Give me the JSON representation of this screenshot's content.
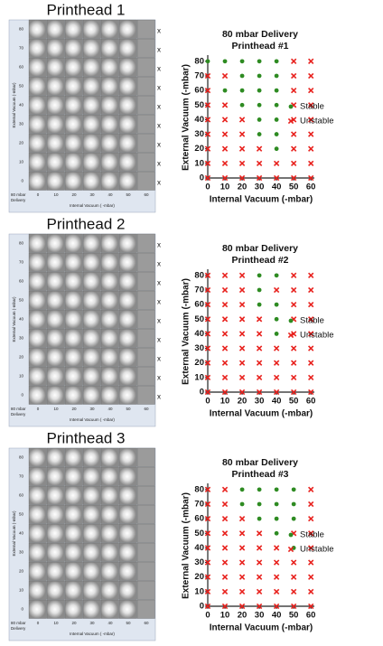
{
  "panels": [
    {
      "title": "Printhead 1",
      "y_labels": [
        80,
        70,
        60,
        50,
        40,
        30,
        20,
        10,
        0
      ],
      "x_labels": [
        0,
        10,
        20,
        30,
        40,
        50,
        60
      ],
      "corner_label": [
        "80 mbar",
        "Delivery"
      ],
      "x_label": "Internal Vacuum ( -mbar)",
      "y_label": "External Vacuum (-mbar)",
      "side_marks": [
        "x",
        "x",
        "x",
        "x",
        "x",
        "x",
        "x",
        "x",
        "x"
      ]
    },
    {
      "title": "Printhead 2",
      "y_labels": [
        80,
        70,
        60,
        50,
        40,
        30,
        20,
        10,
        0
      ],
      "x_labels": [
        0,
        10,
        20,
        30,
        40,
        50,
        60
      ],
      "corner_label": [
        "80 mbar",
        "Delivery"
      ],
      "x_label": "Internal Vacuum ( -mbar)",
      "y_label": "External Vacuum (-mbar)",
      "side_marks": [
        "x",
        "x",
        "x",
        "x",
        "x",
        "x",
        "x",
        "x",
        "x"
      ]
    },
    {
      "title": "Printhead 3",
      "y_labels": [
        80,
        70,
        60,
        50,
        40,
        30,
        20,
        10,
        0
      ],
      "x_labels": [
        0,
        10,
        20,
        30,
        40,
        50,
        60
      ],
      "corner_label": [
        "80 mbar",
        "Delivery"
      ],
      "x_label": "Internal Vacuum ( -mbar)",
      "y_label": "External Vacuum (-mbar)"
    }
  ],
  "chart_data": [
    {
      "type": "scatter",
      "title": "80 mbar Delivery",
      "subtitle": "Printhead #1",
      "x_label": "Internal Vacuum (-mbar)",
      "y_label": "External Vacuum (-mbar)",
      "xlim": [
        0,
        62
      ],
      "ylim": [
        0,
        83
      ],
      "xticks": [
        0,
        10,
        20,
        30,
        40,
        50,
        60
      ],
      "yticks": [
        0,
        10,
        20,
        30,
        40,
        50,
        60,
        70,
        80
      ],
      "legend": "right",
      "series": [
        {
          "name": "Stable",
          "color": "#2e8b22",
          "marker": "circle",
          "x": [
            0,
            10,
            20,
            30,
            40,
            20,
            30,
            40,
            10,
            20,
            30,
            40,
            20,
            30,
            40,
            30,
            40,
            30,
            40,
            40
          ],
          "values": [
            80,
            80,
            80,
            80,
            80,
            70,
            70,
            70,
            60,
            60,
            60,
            60,
            50,
            50,
            50,
            40,
            40,
            30,
            30,
            20
          ]
        },
        {
          "name": "Unstable",
          "color": "#e8211d",
          "marker": "cross",
          "x": [
            50,
            60,
            0,
            10,
            50,
            60,
            0,
            50,
            60,
            0,
            10,
            50,
            60,
            0,
            10,
            20,
            50,
            60,
            0,
            10,
            20,
            50,
            60,
            0,
            10,
            20,
            30,
            50,
            60,
            0,
            10,
            20,
            30,
            40,
            50,
            60,
            0,
            10,
            20,
            30,
            40,
            50,
            60
          ],
          "values": [
            80,
            80,
            70,
            70,
            70,
            70,
            60,
            60,
            60,
            50,
            50,
            50,
            50,
            40,
            40,
            40,
            40,
            40,
            30,
            30,
            30,
            30,
            30,
            20,
            20,
            20,
            20,
            20,
            20,
            10,
            10,
            10,
            10,
            10,
            10,
            10,
            0,
            0,
            0,
            0,
            0,
            0,
            0
          ]
        }
      ]
    },
    {
      "type": "scatter",
      "title": "80 mbar Delivery",
      "subtitle": "Printhead #2",
      "x_label": "Internal Vacuum (-mbar)",
      "y_label": "External Vacuum (-mbar)",
      "xlim": [
        0,
        62
      ],
      "ylim": [
        0,
        83
      ],
      "xticks": [
        0,
        10,
        20,
        30,
        40,
        50,
        60
      ],
      "yticks": [
        0,
        10,
        20,
        30,
        40,
        50,
        60,
        70,
        80
      ],
      "legend": "right",
      "series": [
        {
          "name": "Stable",
          "color": "#2e8b22",
          "marker": "circle",
          "x": [
            30,
            40,
            30,
            30,
            40,
            40,
            40
          ],
          "values": [
            80,
            80,
            70,
            60,
            60,
            50,
            40
          ]
        },
        {
          "name": "Unstable",
          "color": "#e8211d",
          "marker": "cross",
          "x": [
            0,
            10,
            20,
            50,
            60,
            0,
            10,
            20,
            40,
            50,
            60,
            0,
            10,
            20,
            50,
            60,
            0,
            10,
            20,
            30,
            50,
            60,
            0,
            10,
            20,
            30,
            50,
            60,
            0,
            10,
            20,
            30,
            40,
            50,
            60,
            0,
            10,
            20,
            30,
            40,
            50,
            60,
            0,
            10,
            20,
            30,
            40,
            50,
            60,
            0,
            10,
            20,
            30,
            40,
            50,
            60
          ],
          "values": [
            80,
            80,
            80,
            80,
            80,
            70,
            70,
            70,
            70,
            70,
            70,
            60,
            60,
            60,
            60,
            60,
            50,
            50,
            50,
            50,
            50,
            50,
            40,
            40,
            40,
            40,
            40,
            40,
            30,
            30,
            30,
            30,
            30,
            30,
            30,
            20,
            20,
            20,
            20,
            20,
            20,
            20,
            10,
            10,
            10,
            10,
            10,
            10,
            10,
            0,
            0,
            0,
            0,
            0,
            0,
            0
          ]
        }
      ]
    },
    {
      "type": "scatter",
      "title": "80 mbar Delivery",
      "subtitle": "Printhead #3",
      "x_label": "Internal Vacuum (-mbar)",
      "y_label": "External Vacuum (-mbar)",
      "xlim": [
        0,
        62
      ],
      "ylim": [
        0,
        83
      ],
      "xticks": [
        0,
        10,
        20,
        30,
        40,
        50,
        60
      ],
      "yticks": [
        0,
        10,
        20,
        30,
        40,
        50,
        60,
        70,
        80
      ],
      "legend": "right",
      "series": [
        {
          "name": "Stable",
          "color": "#2e8b22",
          "marker": "circle",
          "x": [
            20,
            30,
            40,
            50,
            20,
            30,
            40,
            50,
            30,
            40,
            50,
            40,
            50
          ],
          "values": [
            80,
            80,
            80,
            80,
            70,
            70,
            70,
            70,
            60,
            60,
            60,
            50,
            40
          ]
        },
        {
          "name": "Unstable",
          "color": "#e8211d",
          "marker": "cross",
          "x": [
            0,
            10,
            60,
            0,
            10,
            60,
            0,
            10,
            20,
            60,
            0,
            10,
            20,
            30,
            50,
            60,
            0,
            10,
            20,
            30,
            40,
            60,
            0,
            10,
            20,
            30,
            40,
            50,
            60,
            0,
            10,
            20,
            30,
            40,
            50,
            60,
            0,
            10,
            20,
            30,
            40,
            50,
            60,
            0,
            10,
            20,
            30,
            40,
            50,
            60
          ],
          "values": [
            80,
            80,
            80,
            70,
            70,
            70,
            60,
            60,
            60,
            60,
            50,
            50,
            50,
            50,
            50,
            50,
            40,
            40,
            40,
            40,
            40,
            40,
            30,
            30,
            30,
            30,
            30,
            30,
            30,
            20,
            20,
            20,
            20,
            20,
            20,
            20,
            10,
            10,
            10,
            10,
            10,
            10,
            10,
            0,
            0,
            0,
            0,
            0,
            0,
            0
          ]
        }
      ]
    }
  ]
}
